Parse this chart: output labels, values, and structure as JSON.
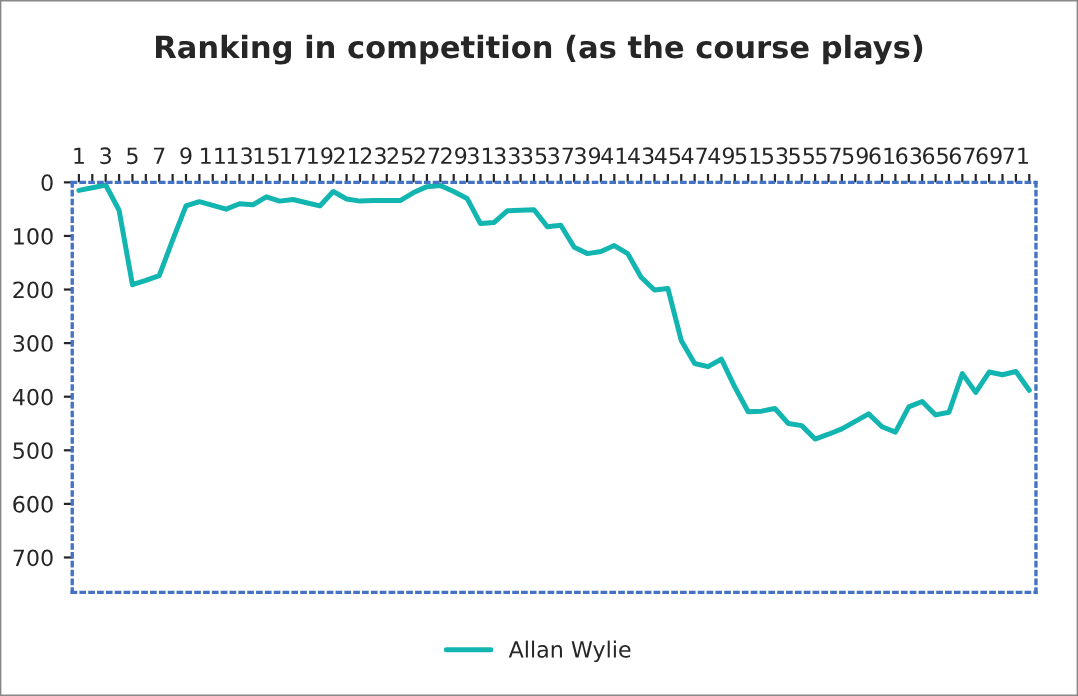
{
  "chart_data": {
    "type": "line",
    "title": "Ranking in competition (as the course plays)",
    "categories": [
      "1",
      null,
      "3",
      null,
      "5",
      null,
      "7",
      null,
      "9",
      null,
      "11",
      null,
      "13",
      null,
      "15",
      null,
      "17",
      null,
      "19",
      null,
      "21",
      null,
      "23",
      null,
      "25",
      null,
      "27",
      null,
      "29",
      null,
      "31",
      null,
      "33",
      null,
      "35",
      null,
      "37",
      null,
      "39",
      null,
      "41",
      null,
      "43",
      null,
      "45",
      null,
      "47",
      null,
      "49",
      null,
      "51",
      null,
      "53",
      null,
      "55",
      null,
      "57",
      null,
      "59",
      null,
      "61",
      null,
      "63",
      null,
      "65",
      null,
      "67",
      null,
      "69",
      null,
      "71",
      null
    ],
    "series": [
      {
        "name": "Allan Wylie",
        "color": "#13b5b1",
        "values": [
          15,
          10,
          5,
          52,
          191,
          183,
          174,
          108,
          44,
          36,
          43,
          50,
          40,
          42,
          27,
          35,
          32,
          38,
          44,
          17,
          31,
          35,
          34,
          34,
          34,
          19,
          8,
          6,
          17,
          30,
          77,
          75,
          53,
          52,
          51,
          83,
          80,
          121,
          133,
          129,
          118,
          133,
          177,
          201,
          198,
          295,
          338,
          344,
          330,
          382,
          428,
          427,
          422,
          450,
          454,
          479,
          470,
          460,
          446,
          432,
          456,
          466,
          419,
          409,
          434,
          429,
          357,
          392,
          354,
          359,
          353,
          388
        ]
      }
    ],
    "ylim": [
      765,
      0
    ],
    "yticks": [
      0,
      100,
      200,
      300,
      400,
      500,
      600,
      700
    ],
    "grid": false,
    "legend": "bottom",
    "marker": "none",
    "line_style": "solid"
  }
}
